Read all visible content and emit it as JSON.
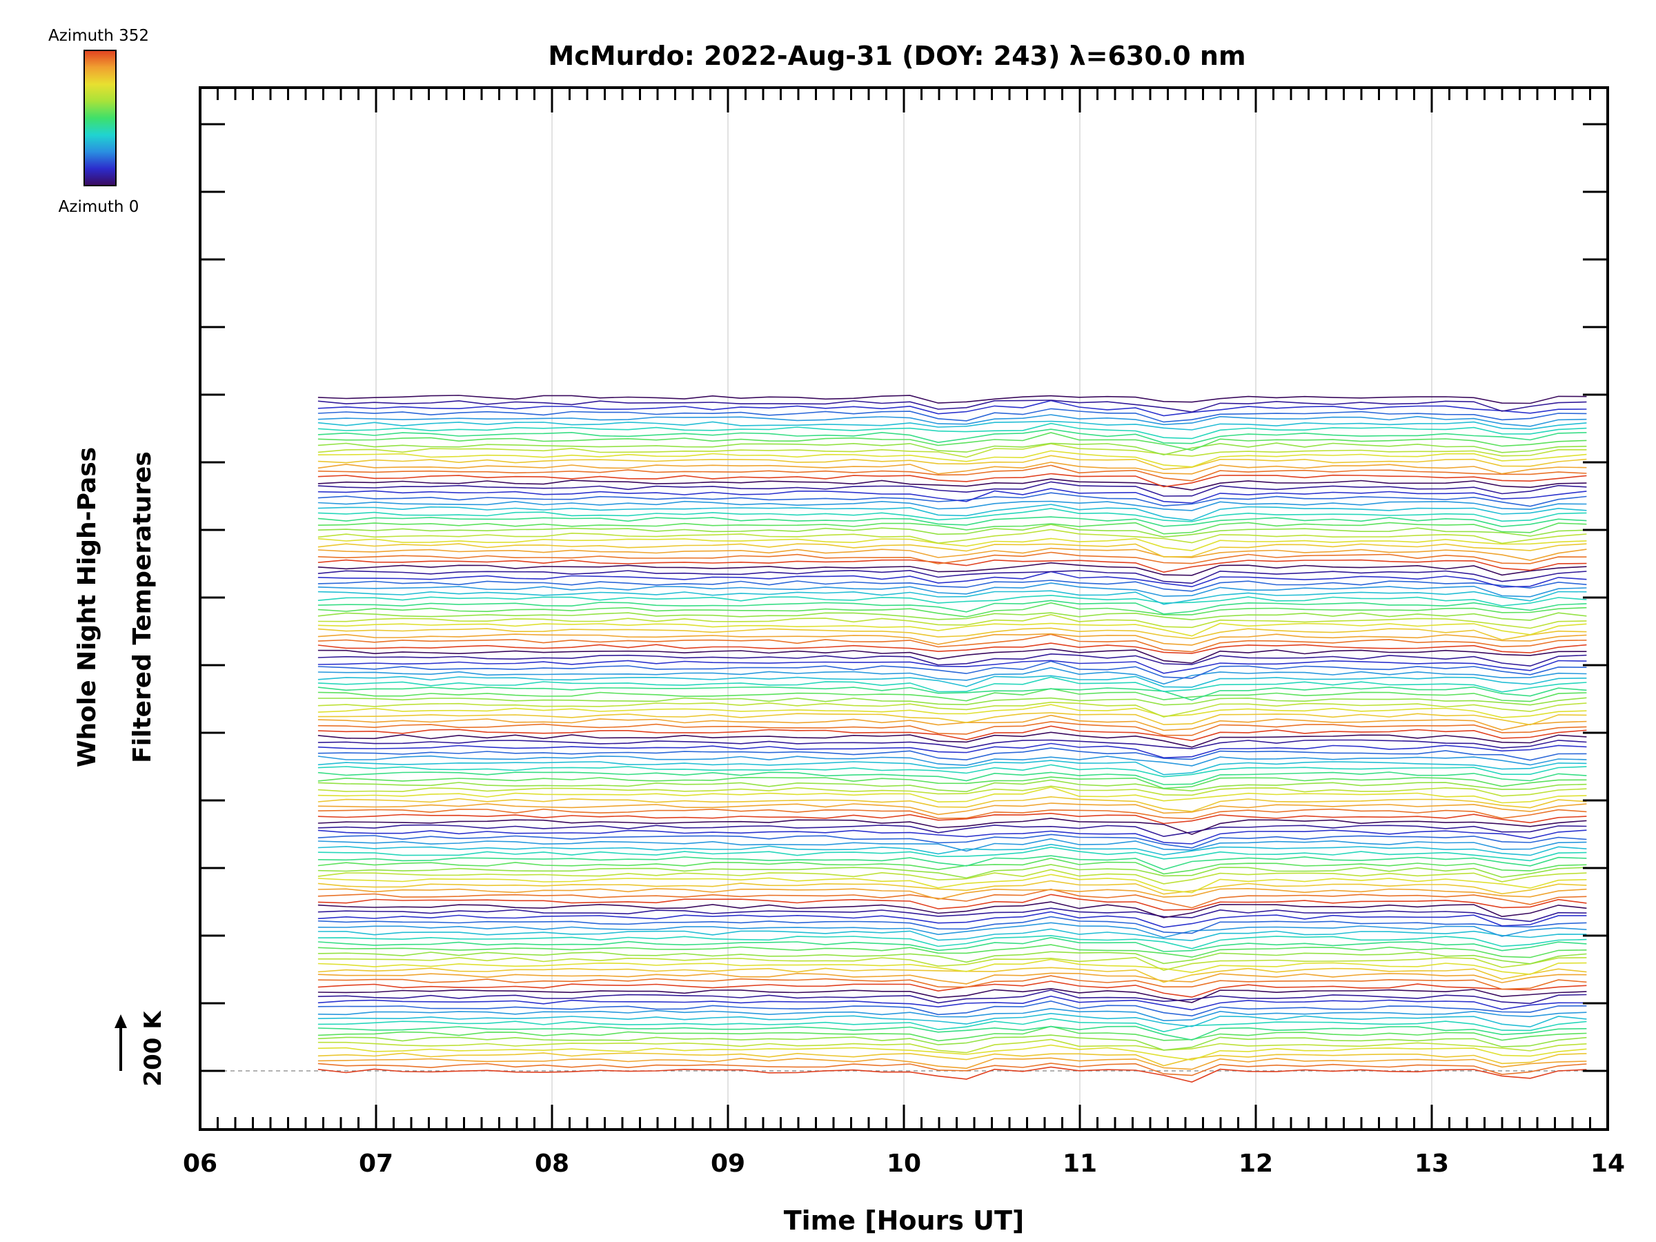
{
  "chart_data": {
    "type": "line",
    "title": "McMurdo: 2022-Aug-31 (DOY: 243) λ=630.0 nm",
    "xlabel": "Time [Hours UT]",
    "ylabel_line1": "Whole Night High-Pass",
    "ylabel_line2": "Filtered Temperatures",
    "scale_label": "200 K",
    "colorbar": {
      "top_label": "Azimuth 352",
      "bottom_label": "Azimuth 0",
      "colormap": "rainbow",
      "stops": [
        "#3a0a5e",
        "#2c2ccc",
        "#2a8fe0",
        "#20d4d0",
        "#3fe06a",
        "#a8e23a",
        "#e8e030",
        "#f0a030",
        "#e04020"
      ]
    },
    "xlim": [
      6,
      14
    ],
    "x_ticks": [
      "06",
      "07",
      "08",
      "09",
      "10",
      "11",
      "12",
      "13",
      "14"
    ],
    "x_range_data": [
      6.67,
      13.88
    ],
    "grid": true,
    "num_traces": 128,
    "traces_per_group": 16,
    "trace_offset_K": 20,
    "trace_amplitude_K": 6,
    "baseline_dashed": true
  }
}
